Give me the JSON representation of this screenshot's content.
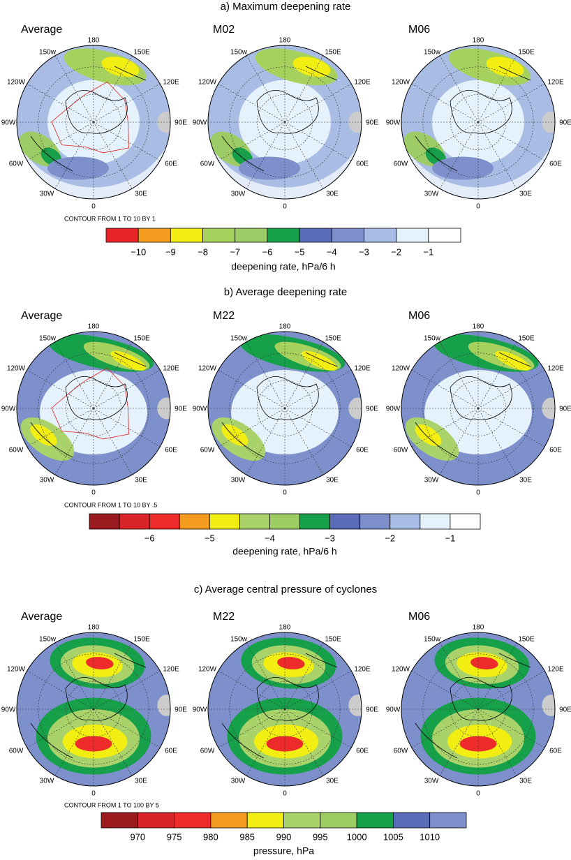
{
  "compass_labels": [
    "180",
    "150E",
    "120E",
    "90E",
    "60E",
    "30E",
    "0",
    "30W",
    "60W",
    "90W",
    "120W",
    "150w"
  ],
  "sections": [
    {
      "title": "a) Maximum deepening rate",
      "panels": [
        "Average",
        "M02",
        "M06"
      ],
      "contour_note": "CONTOUR FROM 1 TO 10 BY 1",
      "colorbar": {
        "colors": [
          "#e8262a",
          "#f39c1f",
          "#f2ee12",
          "#a6d15c",
          "#9dcc66",
          "#17a04a",
          "#5a6cb8",
          "#7d90cc",
          "#a9bde4",
          "#e6f2fb",
          "#ffffff"
        ],
        "boundary_labels": [
          "−10",
          "−9",
          "−8",
          "−7",
          "−6",
          "−5",
          "−4",
          "−3",
          "−2",
          "−1"
        ],
        "label": "deepening rate, hPa/6 h"
      }
    },
    {
      "title": "b) Average deepening rate",
      "panels": [
        "Average",
        "M22",
        "M06"
      ],
      "contour_note": "CONTOUR FROM 1 TO 10 BY .5",
      "colorbar": {
        "colors": [
          "#9b1b1f",
          "#d9252a",
          "#ed2b2a",
          "#f39c1f",
          "#f2ee12",
          "#a9d26b",
          "#9dcc63",
          "#17a04a",
          "#5a6cb8",
          "#7d90cc",
          "#a9bde4",
          "#e6f2fb",
          "#ffffff"
        ],
        "boundary_labels": [
          null,
          "−6",
          null,
          "−5",
          null,
          "−4",
          null,
          "−3",
          null,
          "−2",
          null,
          "−1"
        ],
        "label": "deepening rate, hPa/6 h"
      }
    },
    {
      "title": "c) Average central pressure of cyclones",
      "panels": [
        "Average",
        "M22",
        "M06"
      ],
      "contour_note": "CONTOUR FROM 1 TO 100 BY 5",
      "colorbar": {
        "colors": [
          "#9b1b1f",
          "#d9252a",
          "#ed2b2a",
          "#f39c1f",
          "#f2ee12",
          "#a9d26b",
          "#9dcc63",
          "#16a04a",
          "#5a6cb8",
          "#7d90cc"
        ],
        "boundary_labels": [
          "970",
          "975",
          "980",
          "985",
          "990",
          "995",
          "1000",
          "1005",
          "1010"
        ],
        "label": "pressure, hPa"
      }
    }
  ]
}
